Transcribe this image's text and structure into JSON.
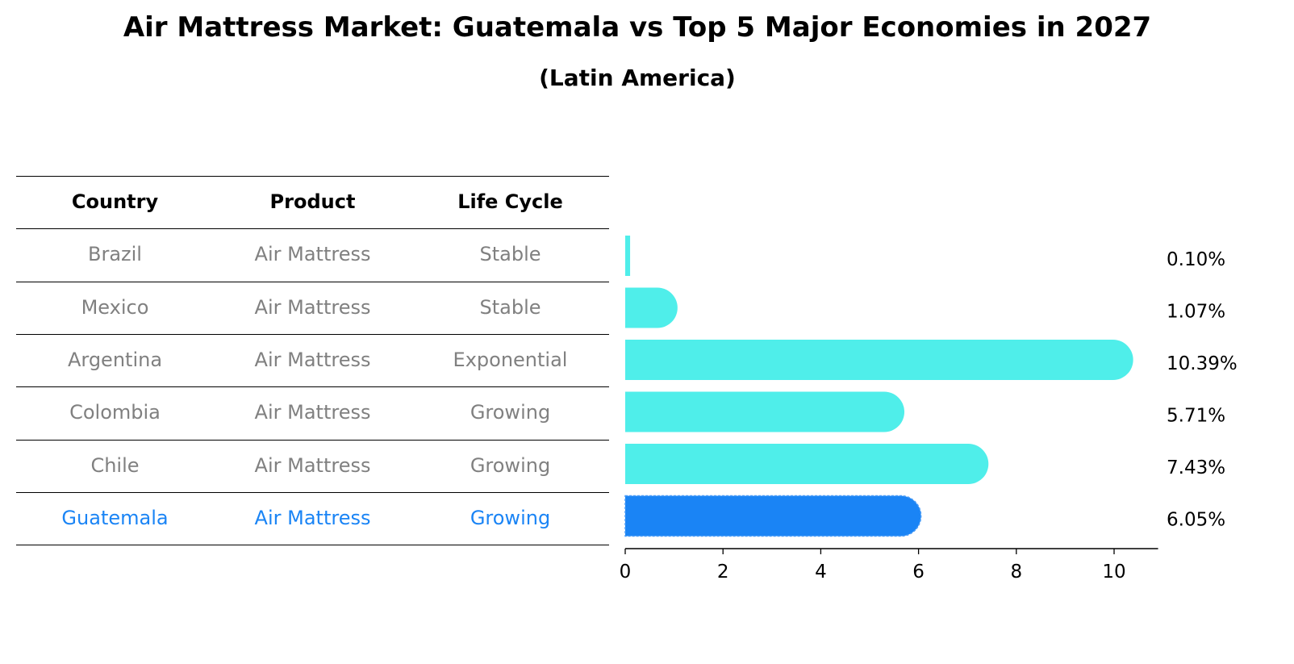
{
  "title": "Air Mattress Market: Guatemala vs Top 5 Major Economies in 2027",
  "subtitle": "(Latin America)",
  "colors": {
    "bar": "#4FEEEA",
    "highlight": "#1A84F5",
    "muted_text": "#808080"
  },
  "table": {
    "headers": [
      "Country",
      "Product",
      "Life Cycle"
    ],
    "rows": [
      {
        "country": "Brazil",
        "product": "Air Mattress",
        "life_cycle": "Stable",
        "highlight": false
      },
      {
        "country": "Mexico",
        "product": "Air Mattress",
        "life_cycle": "Stable",
        "highlight": false
      },
      {
        "country": "Argentina",
        "product": "Air Mattress",
        "life_cycle": "Exponential",
        "highlight": false
      },
      {
        "country": "Colombia",
        "product": "Air Mattress",
        "life_cycle": "Growing",
        "highlight": false
      },
      {
        "country": "Chile",
        "product": "Air Mattress",
        "life_cycle": "Growing",
        "highlight": false
      },
      {
        "country": "Guatemala",
        "product": "Air Mattress",
        "life_cycle": "Growing",
        "highlight": true
      }
    ]
  },
  "chart_data": {
    "type": "bar",
    "orientation": "horizontal",
    "categories": [
      "Brazil",
      "Mexico",
      "Argentina",
      "Colombia",
      "Chile",
      "Guatemala"
    ],
    "values": [
      0.1,
      1.07,
      10.39,
      5.71,
      7.43,
      6.05
    ],
    "value_labels": [
      "0.10%",
      "1.07%",
      "10.39%",
      "5.71%",
      "7.43%",
      "6.05%"
    ],
    "highlight_category": "Guatemala",
    "xlim": [
      0,
      10.9
    ],
    "xticks": [
      0,
      2,
      4,
      6,
      8,
      10
    ],
    "xlabel": "",
    "ylabel": "",
    "grid": false
  }
}
